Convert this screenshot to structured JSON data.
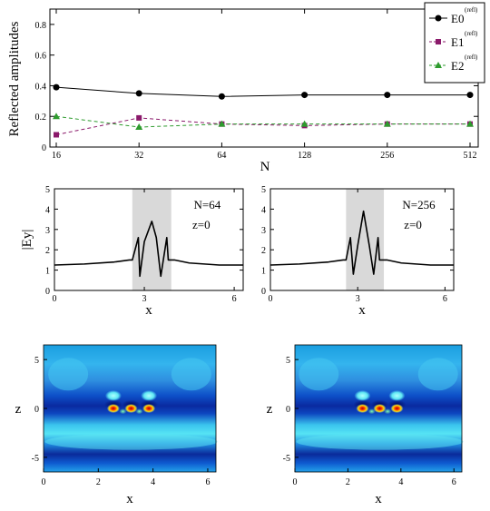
{
  "chart_data": [
    {
      "type": "line",
      "xlabel": "N",
      "ylabel": "Reflected amplitudes",
      "x_scale": "log2",
      "categories": [
        "16",
        "32",
        "64",
        "128",
        "256",
        "512"
      ],
      "x": [
        16,
        32,
        64,
        128,
        256,
        512
      ],
      "ylim": [
        0,
        0.9
      ],
      "y_ticks": [
        "0",
        "0.2",
        "0.4",
        "0.6",
        "0.8"
      ],
      "legend": "top-right",
      "series": [
        {
          "name": "E0",
          "name_superscript": "(refl)",
          "marker": "circle",
          "line": "solid",
          "color": "#000000",
          "values": [
            0.39,
            0.35,
            0.33,
            0.34,
            0.34,
            0.34
          ]
        },
        {
          "name": "E1",
          "name_superscript": "(refl)",
          "marker": "square",
          "line": "dashed",
          "color": "#8b1a6b",
          "values": [
            0.08,
            0.19,
            0.15,
            0.14,
            0.15,
            0.15
          ]
        },
        {
          "name": "E2",
          "name_superscript": "(refl)",
          "marker": "triangle",
          "line": "dashed",
          "color": "#2e9b2e",
          "values": [
            0.2,
            0.13,
            0.15,
            0.15,
            0.15,
            0.15
          ]
        }
      ]
    },
    {
      "type": "line",
      "ylabel": "|Ey|",
      "xlabel": "x",
      "xlim": [
        0,
        6.3
      ],
      "ylim": [
        0,
        5
      ],
      "x_ticks": [
        "0",
        "3",
        "6"
      ],
      "y_ticks": [
        "0",
        "1",
        "2",
        "3",
        "4",
        "5"
      ],
      "annotation": [
        "N=64",
        "z=0"
      ],
      "shaded_region": [
        2.6,
        3.9
      ],
      "series": [
        {
          "x": [
            0,
            1.0,
            2.0,
            2.5,
            2.6,
            2.8,
            2.85,
            3.0,
            3.25,
            3.4,
            3.55,
            3.75,
            3.8,
            3.9,
            4.0,
            4.5,
            5.5,
            6.3
          ],
          "values": [
            1.25,
            1.3,
            1.4,
            1.5,
            1.5,
            2.6,
            0.7,
            2.4,
            3.4,
            2.6,
            0.7,
            2.6,
            1.5,
            1.5,
            1.5,
            1.35,
            1.25,
            1.25
          ]
        }
      ]
    },
    {
      "type": "line",
      "xlabel": "x",
      "xlim": [
        0,
        6.3
      ],
      "ylim": [
        0,
        5
      ],
      "x_ticks": [
        "0",
        "3",
        "6"
      ],
      "y_ticks": [
        "0",
        "1",
        "2",
        "3",
        "4",
        "5"
      ],
      "annotation": [
        "N=256",
        "z=0"
      ],
      "shaded_region": [
        2.6,
        3.9
      ],
      "series": [
        {
          "x": [
            0,
            1.0,
            2.0,
            2.5,
            2.6,
            2.75,
            2.85,
            3.0,
            3.2,
            3.4,
            3.55,
            3.7,
            3.75,
            3.9,
            4.0,
            4.5,
            5.5,
            6.3
          ],
          "values": [
            1.25,
            1.3,
            1.4,
            1.5,
            1.5,
            2.6,
            0.8,
            2.2,
            3.9,
            2.2,
            0.8,
            2.6,
            1.5,
            1.5,
            1.5,
            1.35,
            1.25,
            1.25
          ]
        }
      ]
    },
    {
      "type": "heatmap",
      "xlabel": "x",
      "ylabel": "z",
      "xlim": [
        0,
        6.3
      ],
      "ylim": [
        -6.5,
        6.5
      ],
      "x_ticks": [
        "0",
        "2",
        "4",
        "6"
      ],
      "y_ticks": [
        "-5",
        "0",
        "5"
      ]
    },
    {
      "type": "heatmap",
      "xlabel": "x",
      "ylabel": "z",
      "xlim": [
        0,
        6.3
      ],
      "ylim": [
        -6.5,
        6.5
      ],
      "x_ticks": [
        "0",
        "2",
        "4",
        "6"
      ],
      "y_ticks": [
        "-5",
        "0",
        "5"
      ]
    }
  ]
}
